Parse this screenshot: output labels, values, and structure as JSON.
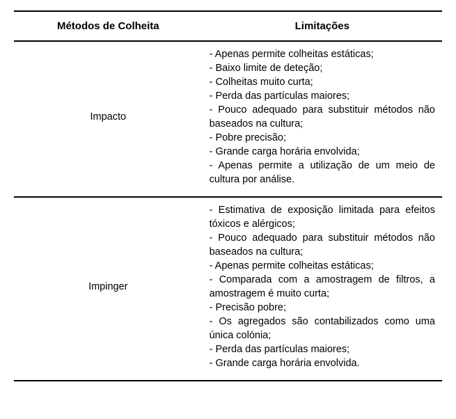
{
  "table": {
    "headers": {
      "col1": "Métodos de Colheita",
      "col2": "Limitações"
    },
    "rows": [
      {
        "method": "Impacto",
        "limitations": [
          "- Apenas permite colheitas estáticas;",
          "- Baixo limite de deteção;",
          "- Colheitas muito curta;",
          "- Perda das partículas maiores;",
          "- Pouco adequado para substituir métodos não baseados na cultura;",
          "- Pobre precisão;",
          "- Grande carga horária envolvida;",
          "- Apenas permite a utilização de um meio de cultura por análise."
        ]
      },
      {
        "method": "Impinger",
        "limitations": [
          "- Estimativa de exposição limitada para efeitos tóxicos e alérgicos;",
          "- Pouco adequado para substituir métodos não baseados na cultura;",
          "- Apenas permite colheitas estáticas;",
          "- Comparada com a amostragem de filtros, a amostragem é muito curta;",
          "- Precisão pobre;",
          "- Os agregados são contabilizados como uma única colónia;",
          "- Perda das partículas maiores;",
          "- Grande carga horária envolvida."
        ]
      }
    ]
  },
  "style": {
    "font_family": "Arial",
    "header_fontsize": 15,
    "cell_fontsize": 14.5,
    "text_color": "#000000",
    "background_color": "#ffffff",
    "border_color": "#000000",
    "border_width": 2,
    "col1_width_pct": 44,
    "col2_width_pct": 56,
    "line_height": 1.38
  }
}
